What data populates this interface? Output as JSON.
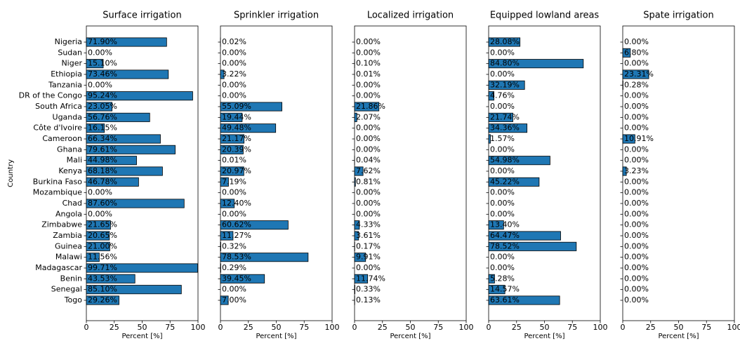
{
  "chart_data": [
    {
      "type": "barh",
      "title": "Surface irrigation",
      "ylabel": "Country",
      "xlabel": "Percent [%]",
      "categories": [
        "Nigeria",
        "Sudan",
        "Niger",
        "Ethiopia",
        "Tanzania",
        "DR of the Congo",
        "South Africa",
        "Uganda",
        "Côte d'Ivoire",
        "Cameroon",
        "Ghana",
        "Mali",
        "Kenya",
        "Burkina Faso",
        "Mozambique",
        "Chad",
        "Angola",
        "Zimbabwe",
        "Zambia",
        "Guinea",
        "Malawi",
        "Madagascar",
        "Benin",
        "Senegal",
        "Togo"
      ],
      "values": [
        71.9,
        0,
        15.1,
        73.46,
        0,
        95.24,
        23.05,
        56.76,
        16.15,
        66.34,
        79.61,
        44.98,
        68.18,
        46.78,
        0,
        87.6,
        0,
        21.65,
        20.65,
        21.0,
        11.56,
        99.71,
        43.53,
        85.1,
        29.26
      ],
      "value_labels": [
        "71.90%",
        "0.00%",
        "15.10%",
        "73.46%",
        "0.00%",
        "95.24%",
        "23.05%",
        "56.76%",
        "16.15%",
        "66.34%",
        "79.61%",
        "44.98%",
        "68.18%",
        "46.78%",
        "0.00%",
        "87.60%",
        "0.00%",
        "21.65%",
        "20.65%",
        "21.00%",
        "11.56%",
        "99.71%",
        "43.53%",
        "85.10%",
        "29.26%"
      ],
      "color": "#1f77b4",
      "xlim": [
        0,
        100
      ],
      "xticks": [
        0,
        25,
        50,
        75,
        100
      ]
    },
    {
      "type": "barh",
      "title": "Sprinkler irrigation",
      "xlabel": "Percent [%]",
      "values": [
        0.02,
        0,
        0,
        3.22,
        0,
        0,
        55.09,
        19.44,
        49.48,
        21.17,
        20.39,
        0.01,
        20.97,
        7.19,
        0,
        12.4,
        0,
        60.62,
        11.27,
        0.32,
        78.53,
        0.29,
        39.45,
        0,
        7.0
      ],
      "value_labels": [
        "0.02%",
        "0.00%",
        "0.00%",
        "3.22%",
        "0.00%",
        "0.00%",
        "55.09%",
        "19.44%",
        "49.48%",
        "21.17%",
        "20.39%",
        "0.01%",
        "20.97%",
        "7.19%",
        "0.00%",
        "12.40%",
        "0.00%",
        "60.62%",
        "11.27%",
        "0.32%",
        "78.53%",
        "0.29%",
        "39.45%",
        "0.00%",
        "7.00%"
      ],
      "color": "#1f77b4",
      "xlim": [
        0,
        100
      ],
      "xticks": [
        0,
        25,
        50,
        75,
        100
      ]
    },
    {
      "type": "barh",
      "title": "Localized irrigation",
      "xlabel": "Percent [%]",
      "values": [
        0,
        0,
        0.1,
        0.01,
        0,
        0,
        21.86,
        2.07,
        0,
        0,
        0,
        0.04,
        7.62,
        0.81,
        0,
        0,
        0,
        4.33,
        3.61,
        0.17,
        9.91,
        0,
        11.74,
        0.33,
        0.13
      ],
      "value_labels": [
        "0.00%",
        "0.00%",
        "0.10%",
        "0.01%",
        "0.00%",
        "0.00%",
        "21.86%",
        "2.07%",
        "0.00%",
        "0.00%",
        "0.00%",
        "0.04%",
        "7.62%",
        "0.81%",
        "0.00%",
        "0.00%",
        "0.00%",
        "4.33%",
        "3.61%",
        "0.17%",
        "9.91%",
        "0.00%",
        "11.74%",
        "0.33%",
        "0.13%"
      ],
      "color": "#1f77b4",
      "xlim": [
        0,
        100
      ],
      "xticks": [
        0,
        25,
        50,
        75,
        100
      ]
    },
    {
      "type": "barh",
      "title": "Equipped lowland areas",
      "xlabel": "Percent [%]",
      "values": [
        28.08,
        0,
        84.8,
        0,
        32.19,
        4.76,
        0,
        21.74,
        34.36,
        1.57,
        0,
        54.98,
        0,
        45.22,
        0,
        0,
        0,
        13.4,
        64.47,
        78.52,
        0,
        0,
        5.28,
        14.57,
        63.61
      ],
      "value_labels": [
        "28.08%",
        "0.00%",
        "84.80%",
        "0.00%",
        "32.19%",
        "4.76%",
        "0.00%",
        "21.74%",
        "34.36%",
        "1.57%",
        "0.00%",
        "54.98%",
        "0.00%",
        "45.22%",
        "0.00%",
        "0.00%",
        "0.00%",
        "13.40%",
        "64.47%",
        "78.52%",
        "0.00%",
        "0.00%",
        "5.28%",
        "14.57%",
        "63.61%"
      ],
      "color": "#1f77b4",
      "xlim": [
        0,
        100
      ],
      "xticks": [
        0,
        25,
        50,
        75,
        100
      ]
    },
    {
      "type": "barh",
      "title": "Spate irrigation",
      "xlabel": "Percent [%]",
      "values": [
        0,
        6.8,
        0,
        23.31,
        0.28,
        0,
        0,
        0,
        0,
        10.91,
        0,
        0,
        3.23,
        0,
        0,
        0,
        0,
        0,
        0,
        0,
        0,
        0,
        0,
        0,
        0
      ],
      "value_labels": [
        "0.00%",
        "6.80%",
        "0.00%",
        "23.31%",
        "0.28%",
        "0.00%",
        "0.00%",
        "0.00%",
        "0.00%",
        "10.91%",
        "0.00%",
        "0.00%",
        "3.23%",
        "0.00%",
        "0.00%",
        "0.00%",
        "0.00%",
        "0.00%",
        "0.00%",
        "0.00%",
        "0.00%",
        "0.00%",
        "0.00%",
        "0.00%",
        "0.00%"
      ],
      "color": "#1f77b4",
      "xlim": [
        0,
        100
      ],
      "xticks": [
        0,
        25,
        50,
        75,
        100
      ]
    }
  ]
}
